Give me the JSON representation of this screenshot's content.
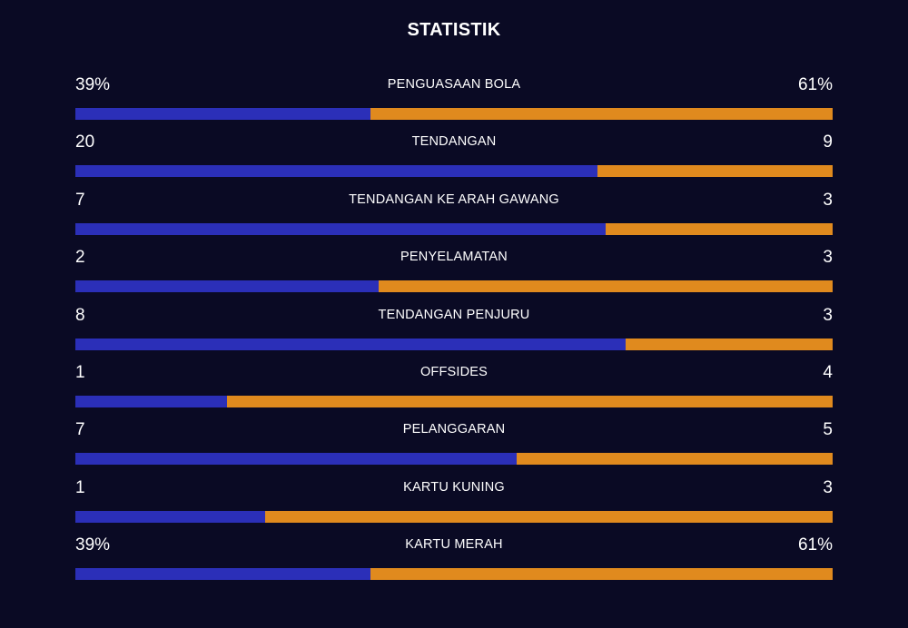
{
  "title": "STATISTIK",
  "colors": {
    "background": "#0a0a24",
    "home": "#2b2fb8",
    "away": "#e08a1e"
  },
  "stats": [
    {
      "label": "PENGUASAAN BOLA",
      "home": "39%",
      "away": "61%",
      "home_share": 0.39
    },
    {
      "label": "TENDANGAN",
      "home": "20",
      "away": "9",
      "home_share": 0.69
    },
    {
      "label": "TENDANGAN KE ARAH GAWANG",
      "home": "7",
      "away": "3",
      "home_share": 0.7
    },
    {
      "label": "PENYELAMATAN",
      "home": "2",
      "away": "3",
      "home_share": 0.4
    },
    {
      "label": "TENDANGAN PENJURU",
      "home": "8",
      "away": "3",
      "home_share": 0.727
    },
    {
      "label": "OFFSIDES",
      "home": "1",
      "away": "4",
      "home_share": 0.2
    },
    {
      "label": "PELANGGARAN",
      "home": "7",
      "away": "5",
      "home_share": 0.583
    },
    {
      "label": "KARTU KUNING",
      "home": "1",
      "away": "3",
      "home_share": 0.25
    },
    {
      "label": "KARTU MERAH",
      "home": "39%",
      "away": "61%",
      "home_share": 0.39
    }
  ]
}
